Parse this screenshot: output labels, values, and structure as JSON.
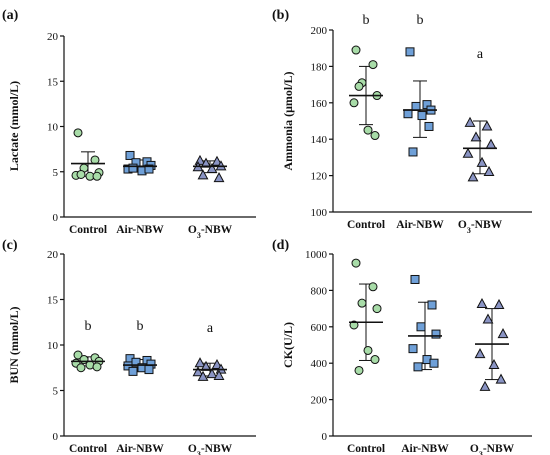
{
  "colors": {
    "Control": "#a8dca8",
    "Air-NBW": "#6fa0d8",
    "O3-NBW": "#8a94c4",
    "axis": "#111111",
    "marker_stroke": "#111111"
  },
  "chart_data": [
    {
      "panel": "(a)",
      "type": "scatter",
      "ylabel": "Lactate (mmol/L)",
      "ylim": [
        0,
        20
      ],
      "yticks": [
        "0",
        "5",
        "10",
        "15",
        "20"
      ],
      "categories": [
        "Control",
        "Air-NBW",
        "O3-NBW"
      ],
      "category_labels": [
        {
          "main": "Control",
          "sub": "",
          "rest": ""
        },
        {
          "main": "Air-NBW",
          "sub": "",
          "rest": ""
        },
        {
          "main": "O",
          "sub": "3",
          "rest": "-NBW"
        }
      ],
      "series": [
        {
          "marker": "circle",
          "points": [
            9.3,
            6.3,
            5.4,
            4.9,
            4.6,
            4.5,
            4.5,
            4.7
          ],
          "mean": 5.9,
          "sd_low": 4.5,
          "sd_high": 7.2
        },
        {
          "marker": "square",
          "points": [
            6.8,
            6.1,
            6.0,
            5.7,
            5.3,
            5.1,
            5.3,
            5.4
          ],
          "mean": 5.6,
          "sd_low": 5.0,
          "sd_high": 6.3
        },
        {
          "marker": "triangle",
          "points": [
            6.2,
            6.1,
            5.9,
            5.6,
            5.5,
            5.3,
            4.3,
            4.6
          ],
          "mean": 5.6,
          "sd_low": 4.9,
          "sd_high": 6.2
        }
      ],
      "significance": [
        "",
        "",
        ""
      ]
    },
    {
      "panel": "(b)",
      "type": "scatter",
      "ylabel": "Ammonia (μmol/L)",
      "ylim": [
        100,
        200
      ],
      "yticks": [
        "100",
        "120",
        "140",
        "160",
        "180",
        "200"
      ],
      "categories": [
        "Control",
        "Air-NBW",
        "O3-NBW"
      ],
      "category_labels": [
        {
          "main": "Control",
          "sub": "",
          "rest": ""
        },
        {
          "main": "Air-NBW",
          "sub": "",
          "rest": ""
        },
        {
          "main": "O",
          "sub": "3",
          "rest": "-NBW"
        }
      ],
      "series": [
        {
          "marker": "circle",
          "points": [
            189,
            181,
            171,
            164,
            160,
            145,
            142,
            169
          ],
          "mean": 164,
          "sd_low": 148,
          "sd_high": 180
        },
        {
          "marker": "square",
          "points": [
            188,
            159,
            158,
            156,
            154,
            153,
            147,
            133
          ],
          "mean": 156,
          "sd_low": 141,
          "sd_high": 172
        },
        {
          "marker": "triangle",
          "points": [
            149,
            147,
            141,
            137,
            132,
            127,
            122,
            119
          ],
          "mean": 135,
          "sd_low": 121,
          "sd_high": 150
        }
      ],
      "significance": [
        "b",
        "b",
        "a"
      ]
    },
    {
      "panel": "(c)",
      "type": "scatter",
      "ylabel": "BUN (mmol/L)",
      "ylim": [
        0,
        20
      ],
      "yticks": [
        "0",
        "5",
        "10",
        "15",
        "20"
      ],
      "categories": [
        "Control",
        "Air-NBW",
        "O3-NBW"
      ],
      "category_labels": [
        {
          "main": "Control",
          "sub": "",
          "rest": ""
        },
        {
          "main": "Air-NBW",
          "sub": "",
          "rest": ""
        },
        {
          "main": "O",
          "sub": "3",
          "rest": "-NBW"
        }
      ],
      "series": [
        {
          "marker": "circle",
          "points": [
            8.9,
            8.6,
            8.4,
            8.2,
            8.0,
            7.8,
            7.6,
            7.5
          ],
          "mean": 8.2,
          "sd_low": 7.7,
          "sd_high": 8.7
        },
        {
          "marker": "square",
          "points": [
            8.5,
            8.3,
            8.1,
            7.9,
            7.7,
            7.5,
            7.3,
            7.1
          ],
          "mean": 7.8,
          "sd_low": 7.2,
          "sd_high": 8.4
        },
        {
          "marker": "triangle",
          "points": [
            8.0,
            7.8,
            7.6,
            7.3,
            7.0,
            6.8,
            6.6,
            6.5
          ],
          "mean": 7.3,
          "sd_low": 6.6,
          "sd_high": 8.0
        }
      ],
      "significance": [
        "b",
        "b",
        "a"
      ]
    },
    {
      "panel": "(d)",
      "type": "scatter",
      "ylabel": "CK(U/L)",
      "ylim": [
        0,
        1000
      ],
      "yticks": [
        "0",
        "200",
        "400",
        "600",
        "800",
        "1000"
      ],
      "categories": [
        "Control",
        "Air-NBW",
        "O3-NBW"
      ],
      "category_labels": [
        {
          "main": "Control",
          "sub": "",
          "rest": ""
        },
        {
          "main": "Air-NBW",
          "sub": "",
          "rest": ""
        },
        {
          "main": "O",
          "sub": "3",
          "rest": "-NBW"
        }
      ],
      "series": [
        {
          "marker": "circle",
          "points": [
            950,
            820,
            730,
            700,
            610,
            470,
            420,
            360
          ],
          "mean": 625,
          "sd_low": 415,
          "sd_high": 835
        },
        {
          "marker": "square",
          "points": [
            860,
            720,
            600,
            560,
            480,
            420,
            400,
            380
          ],
          "mean": 550,
          "sd_low": 365,
          "sd_high": 735
        },
        {
          "marker": "triangle",
          "points": [
            725,
            720,
            640,
            560,
            450,
            390,
            310,
            270
          ],
          "mean": 505,
          "sd_low": 310,
          "sd_high": 700
        }
      ],
      "significance": [
        "",
        "",
        ""
      ]
    }
  ]
}
